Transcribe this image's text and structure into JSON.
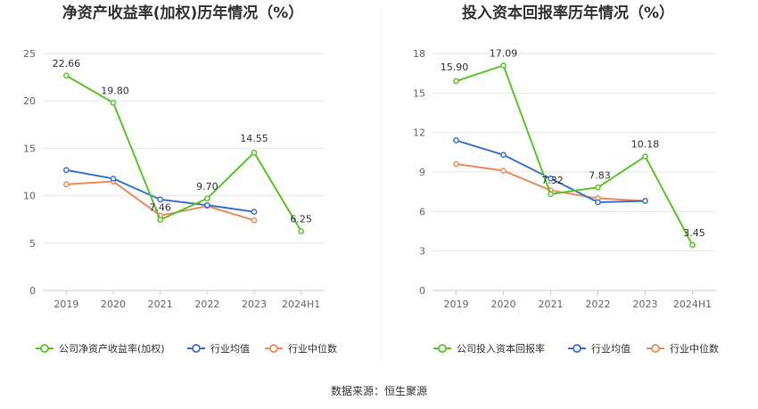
{
  "source_label": "数据来源：恒生聚源",
  "colors": {
    "company": "#5bc429",
    "industry_avg": "#3a72d4",
    "industry_median": "#ef8a5e",
    "grid": "#e6e6e6",
    "divider": "#eeeeee"
  },
  "chart_data": [
    {
      "type": "line",
      "title": "净资产收益率(加权)历年情况（%）",
      "categories": [
        "2019",
        "2020",
        "2021",
        "2022",
        "2023",
        "2024H1"
      ],
      "ylim": [
        0,
        25
      ],
      "yticks": [
        "0",
        "5",
        "10",
        "15",
        "20",
        "25"
      ],
      "series": [
        {
          "name": "公司净资产收益率(加权)",
          "values": [
            22.66,
            19.8,
            7.46,
            9.7,
            14.55,
            6.25
          ],
          "labels": [
            "22.66",
            "19.80",
            "7.46",
            "9.70",
            "14.55",
            "6.25"
          ]
        },
        {
          "name": "行业均值",
          "values": [
            12.7,
            11.8,
            9.6,
            9.0,
            8.3,
            null
          ]
        },
        {
          "name": "行业中位数",
          "values": [
            11.2,
            11.5,
            7.9,
            8.9,
            7.4,
            null
          ]
        }
      ]
    },
    {
      "type": "line",
      "title": "投入资本回报率历年情况（%）",
      "categories": [
        "2019",
        "2020",
        "2021",
        "2022",
        "2023",
        "2024H1"
      ],
      "ylim": [
        0,
        18
      ],
      "yticks": [
        "0",
        "3",
        "6",
        "9",
        "12",
        "15",
        "18"
      ],
      "series": [
        {
          "name": "公司投入资本回报率",
          "values": [
            15.9,
            17.09,
            7.32,
            7.83,
            10.18,
            3.45
          ],
          "labels": [
            "15.90",
            "17.09",
            "7.32",
            "7.83",
            "10.18",
            "3.45"
          ]
        },
        {
          "name": "行业均值",
          "values": [
            11.4,
            10.3,
            8.5,
            6.7,
            6.8,
            null
          ]
        },
        {
          "name": "行业中位数",
          "values": [
            9.6,
            9.1,
            7.6,
            7.0,
            6.8,
            null
          ]
        }
      ]
    }
  ]
}
